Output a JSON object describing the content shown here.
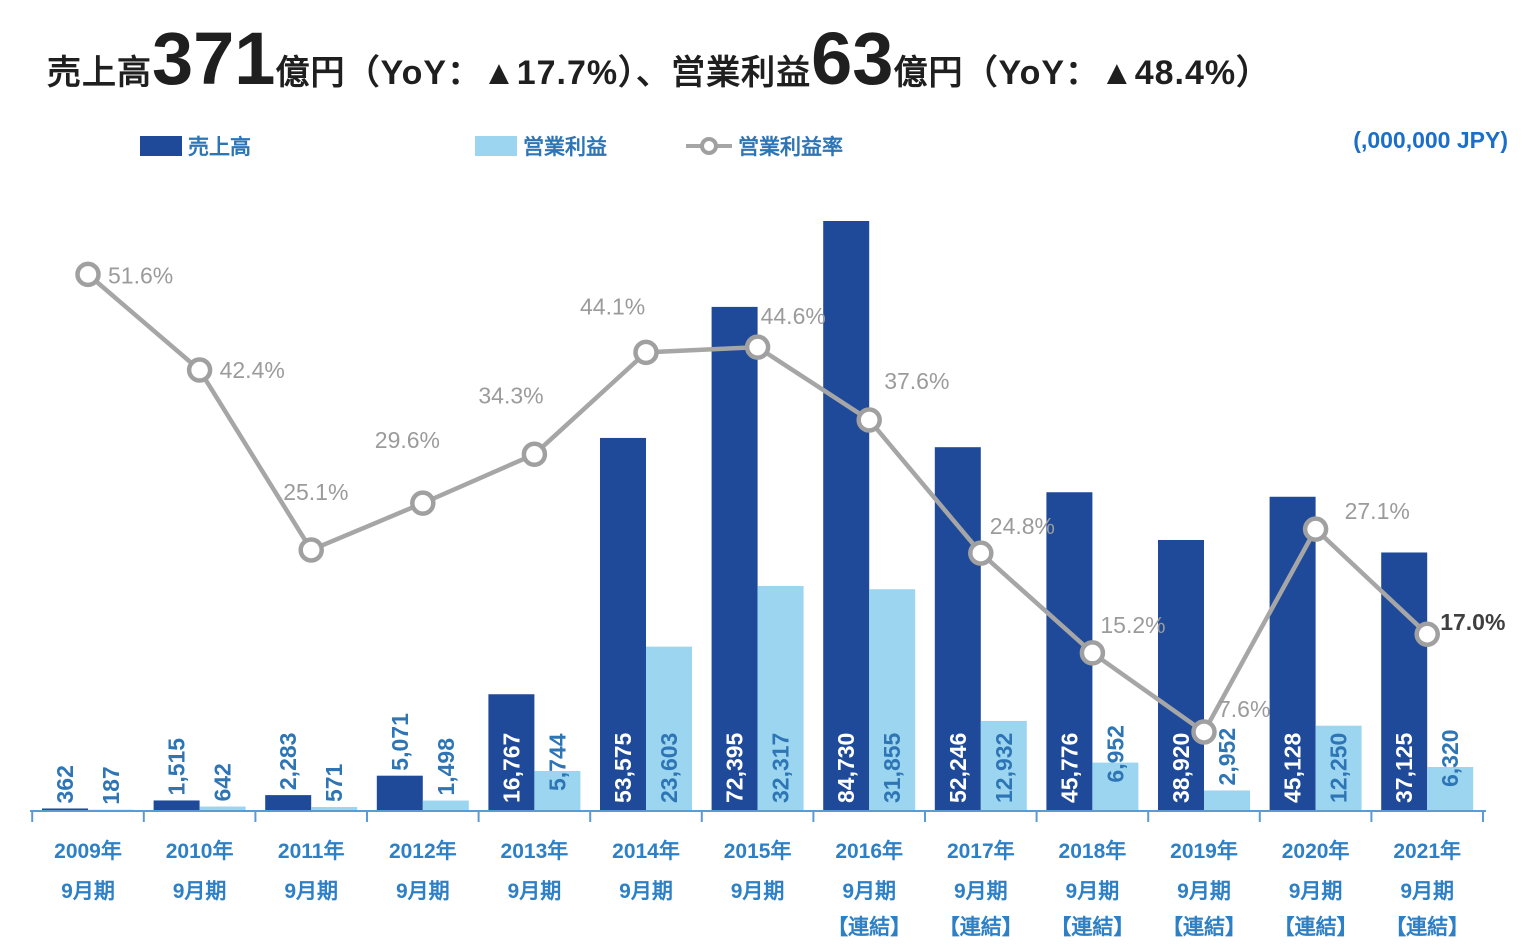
{
  "title": {
    "segments": [
      {
        "text": "売上高",
        "size": "small"
      },
      {
        "text": "371",
        "size": "large"
      },
      {
        "text": "億円（YoY：▲17.7%）、",
        "size": "small"
      },
      {
        "text": "営業利益",
        "size": "small"
      },
      {
        "text": "63",
        "size": "large"
      },
      {
        "text": "億円（YoY：▲48.4%）",
        "size": "small"
      }
    ]
  },
  "legend": [
    {
      "label": "売上高",
      "marker": "bar",
      "color": "#1f4a99"
    },
    {
      "label": "営業利益",
      "marker": "bar",
      "color": "#9cd5f0"
    },
    {
      "label": "営業利益率",
      "marker": "line",
      "color": "#a6a6a6"
    }
  ],
  "unit_note": "(,000,000 JPY)",
  "chart_data": {
    "type": "bar",
    "subtype": "grouped bars + line overlay (combo chart)",
    "categories": [
      {
        "year": "2009年",
        "period": "9月期",
        "note": ""
      },
      {
        "year": "2010年",
        "period": "9月期",
        "note": ""
      },
      {
        "year": "2011年",
        "period": "9月期",
        "note": ""
      },
      {
        "year": "2012年",
        "period": "9月期",
        "note": ""
      },
      {
        "year": "2013年",
        "period": "9月期",
        "note": ""
      },
      {
        "year": "2014年",
        "period": "9月期",
        "note": ""
      },
      {
        "year": "2015年",
        "period": "9月期",
        "note": ""
      },
      {
        "year": "2016年",
        "period": "9月期",
        "note": "【連結】"
      },
      {
        "year": "2017年",
        "period": "9月期",
        "note": "【連結】"
      },
      {
        "year": "2018年",
        "period": "9月期",
        "note": "【連結】"
      },
      {
        "year": "2019年",
        "period": "9月期",
        "note": "【連結】"
      },
      {
        "year": "2020年",
        "period": "9月期",
        "note": "【連結】"
      },
      {
        "year": "2021年",
        "period": "9月期",
        "note": "【連結】"
      }
    ],
    "series": [
      {
        "name": "売上高",
        "type": "bar",
        "color": "#1f4a99",
        "values": [
          362,
          1515,
          2283,
          5071,
          16767,
          53575,
          72395,
          84730,
          52246,
          45776,
          38920,
          45128,
          37125
        ]
      },
      {
        "name": "営業利益",
        "type": "bar",
        "color": "#9cd5f0",
        "values": [
          187,
          642,
          571,
          1498,
          5744,
          23603,
          32317,
          31855,
          12932,
          6952,
          2952,
          12250,
          6320
        ]
      },
      {
        "name": "営業利益率",
        "type": "line",
        "color": "#a6a6a6",
        "unit": "%",
        "values": [
          51.6,
          42.4,
          25.1,
          29.6,
          34.3,
          44.1,
          44.6,
          37.6,
          24.8,
          15.2,
          7.6,
          27.1,
          17.0
        ]
      }
    ],
    "ylabel": "(,000,000 JPY)",
    "bar_axis_range": [
      0,
      90000
    ],
    "line_axis_range": [
      0,
      56
    ],
    "grid": false,
    "y_axis_visible": false,
    "legend_position": "top-left",
    "emphasize_last_category": true,
    "colors": {
      "sales_bar": "#1f4a99",
      "profit_bar": "#9cd5f0",
      "rate_line": "#a6a6a6",
      "rate_label": "#9b9b9b",
      "rate_label_last": "#3f3f3f",
      "value_label_blue": "#2e75b6",
      "value_label_inside_dark": "#ffffff",
      "axis_line": "#5b9bd5",
      "x_label": "#2e80c6",
      "title_text": "#1f1f1f"
    }
  }
}
